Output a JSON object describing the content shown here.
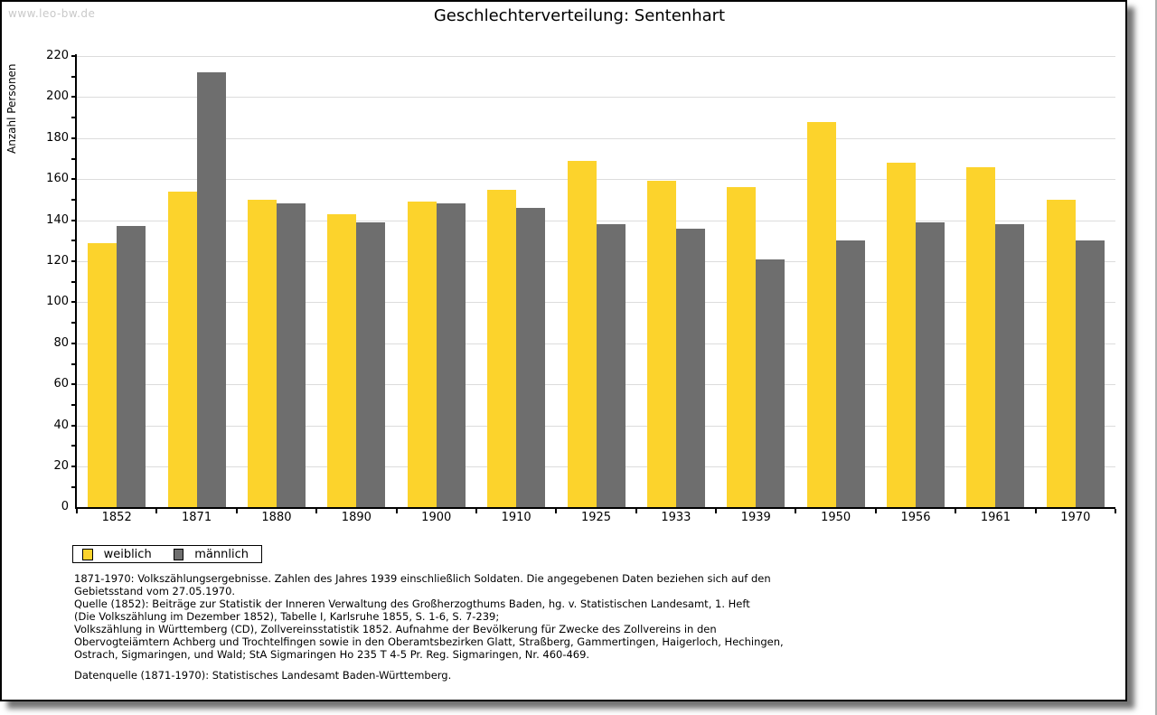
{
  "watermark": "www.leo-bw.de",
  "chart_data": {
    "type": "bar",
    "title": "Geschlechterverteilung: Sentenhart",
    "xlabel": "",
    "ylabel": "Anzahl Personen",
    "categories": [
      "1852",
      "1871",
      "1880",
      "1890",
      "1900",
      "1910",
      "1925",
      "1933",
      "1939",
      "1950",
      "1956",
      "1961",
      "1970"
    ],
    "series": [
      {
        "name": "weiblich",
        "color": "#FCD32C",
        "values": [
          129,
          154,
          150,
          143,
          149,
          155,
          169,
          159,
          156,
          188,
          168,
          166,
          150
        ]
      },
      {
        "name": "männlich",
        "color": "#6E6E6E",
        "values": [
          137,
          212,
          148,
          139,
          148,
          146,
          138,
          136,
          121,
          130,
          139,
          138,
          130
        ]
      }
    ],
    "ylim": [
      0,
      220
    ],
    "ytick_step": 20,
    "y_minor_tick_step": 10,
    "grid": true,
    "legend_position": "bottom-left"
  },
  "footnotes": {
    "lines": [
      "1871-1970: Volkszählungsergebnisse. Zahlen des Jahres 1939 einschließlich Soldaten. Die angegebenen Daten beziehen sich auf den",
      "Gebietsstand vom 27.05.1970.",
      "Quelle (1852): Beiträge zur Statistik der Inneren Verwaltung des Großherzogthums Baden, hg. v. Statistischen Landesamt, 1. Heft",
      "(Die Volkszählung im Dezember 1852), Tabelle I, Karlsruhe 1855, S. 1-6, S. 7-239;",
      "Volkszählung in Württemberg (CD), Zollvereinsstatistik 1852. Aufnahme der Bevölkerung für Zwecke des Zollvereins in den",
      "Obervogteiämtern Achberg und Trochtelfingen sowie in den Oberamtsbezirken Glatt, Straßberg, Gammertingen, Haigerloch, Hechingen,",
      "Ostrach, Sigmaringen, und Wald; StA Sigmaringen Ho 235 T 4-5 Pr. Reg. Sigmaringen, Nr. 460-469."
    ],
    "datasource": "Datenquelle (1871-1970): Statistisches Landesamt Baden-Württemberg."
  },
  "colors": {
    "female_bar": "#FCD32C",
    "male_bar": "#6E6E6E",
    "gridline": "#DCDCDC",
    "axis": "#000000",
    "watermark": "#C9C9C9"
  }
}
